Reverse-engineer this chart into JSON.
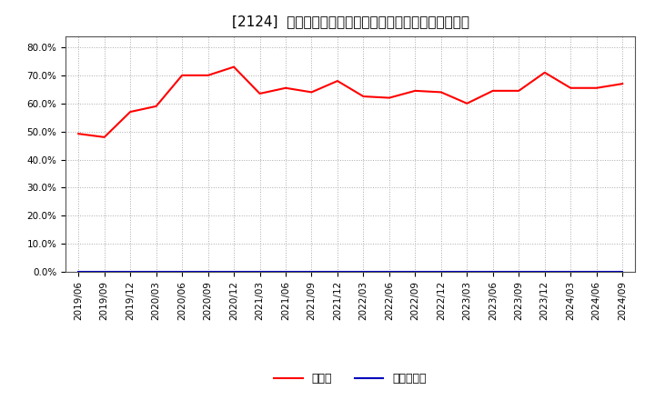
{
  "title": "[2124]  現預金、有利子負債の総資産に対する比率の推移",
  "cash_dates": [
    "2019/06",
    "2019/09",
    "2019/12",
    "2020/03",
    "2020/06",
    "2020/09",
    "2020/12",
    "2021/03",
    "2021/06",
    "2021/09",
    "2021/12",
    "2022/03",
    "2022/06",
    "2022/09",
    "2022/12",
    "2023/03",
    "2023/06",
    "2023/09",
    "2023/12",
    "2024/03",
    "2024/06",
    "2024/09"
  ],
  "cash_values": [
    0.492,
    0.48,
    0.57,
    0.59,
    0.7,
    0.7,
    0.73,
    0.635,
    0.655,
    0.64,
    0.68,
    0.625,
    0.62,
    0.645,
    0.64,
    0.6,
    0.645,
    0.645,
    0.71,
    0.655,
    0.655,
    0.67
  ],
  "debt_values": [
    0.002,
    0.002,
    0.002,
    0.002,
    0.002,
    0.002,
    0.002,
    0.002,
    0.002,
    0.002,
    0.002,
    0.002,
    0.002,
    0.002,
    0.002,
    0.002,
    0.002,
    0.002,
    0.002,
    0.002,
    0.002,
    0.002
  ],
  "cash_color": "#ff0000",
  "debt_color": "#0000bb",
  "background_color": "#ffffff",
  "plot_bg_color": "#ffffff",
  "grid_color": "#aaaaaa",
  "ylim": [
    0.0,
    0.84
  ],
  "yticks": [
    0.0,
    0.1,
    0.2,
    0.3,
    0.4,
    0.5,
    0.6,
    0.7,
    0.8
  ],
  "legend_cash": "現預金",
  "legend_debt": "有利子負債",
  "title_fontsize": 11,
  "tick_fontsize": 7.5,
  "legend_fontsize": 9,
  "line_width": 1.5
}
